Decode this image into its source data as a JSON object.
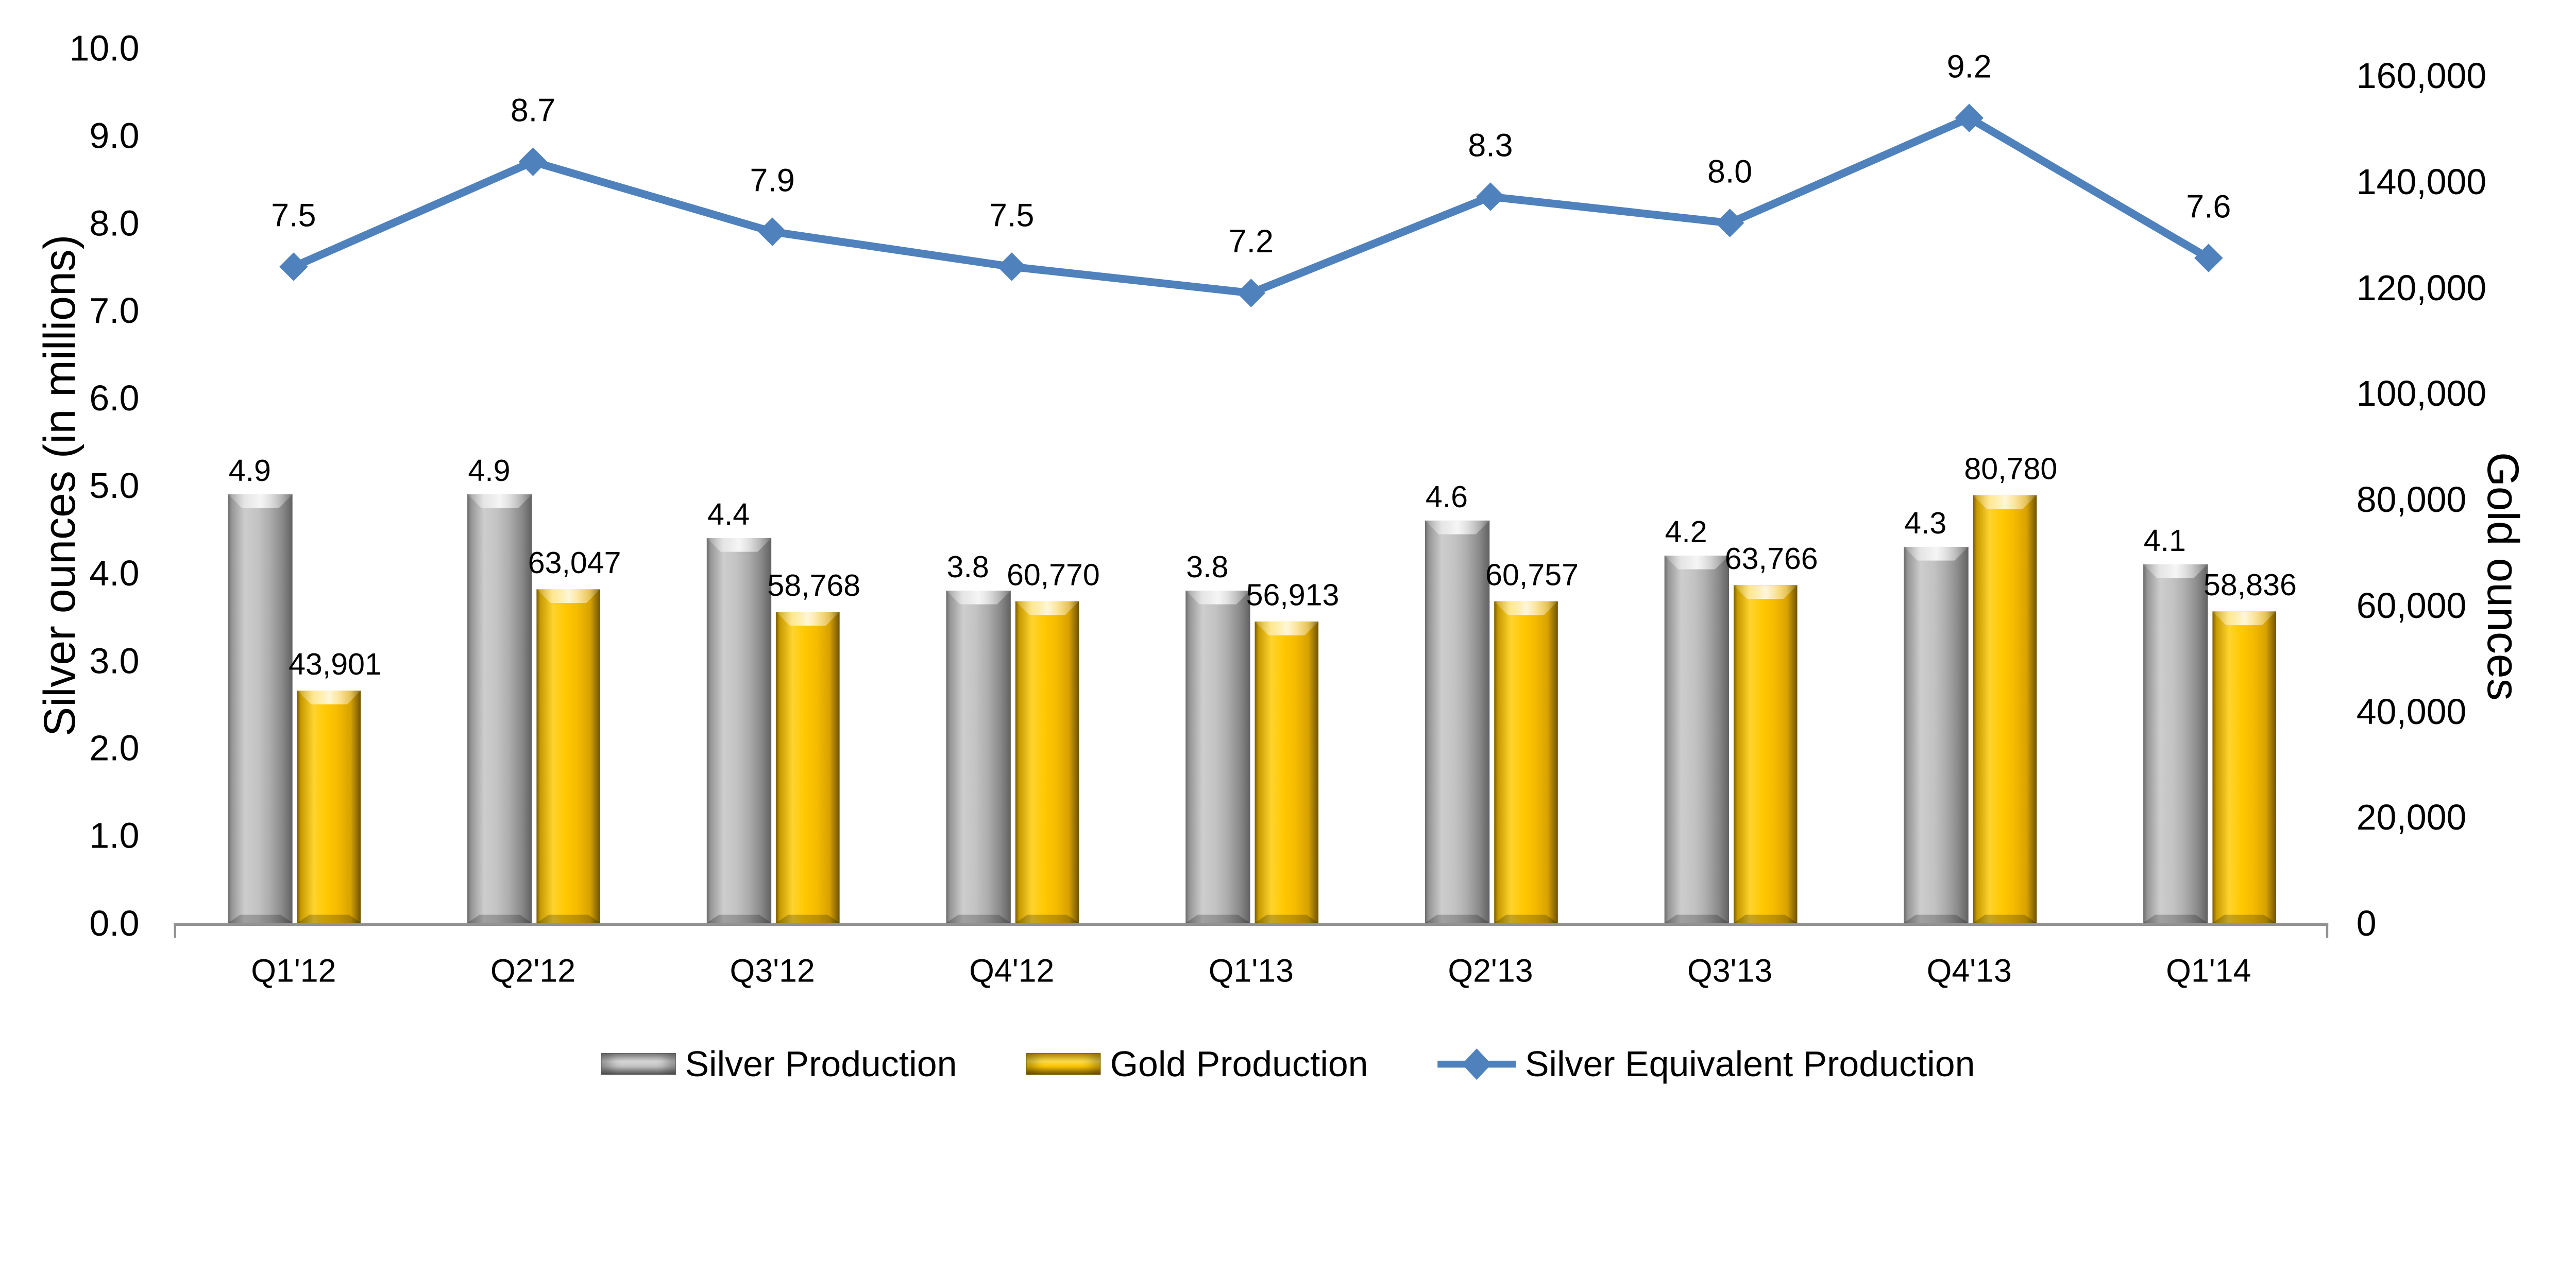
{
  "chart_data": {
    "type": "combo-bar-line",
    "title": "",
    "categories": [
      "Q1'12",
      "Q2'12",
      "Q3'12",
      "Q4'12",
      "Q1'13",
      "Q2'13",
      "Q3'13",
      "Q4'13",
      "Q1'14"
    ],
    "series": [
      {
        "name": "Silver Production",
        "type": "bar",
        "axis": "left",
        "color": "#A6A6A6",
        "values": [
          4.9,
          4.9,
          4.4,
          3.8,
          3.8,
          4.6,
          4.2,
          4.3,
          4.1
        ],
        "labels": [
          "4.9",
          "4.9",
          "4.4",
          "3.8",
          "3.8",
          "4.6",
          "4.2",
          "4.3",
          "4.1"
        ]
      },
      {
        "name": "Gold Production",
        "type": "bar",
        "axis": "right",
        "color": "#FFC000",
        "values": [
          43901,
          63047,
          58768,
          60770,
          56913,
          60757,
          63766,
          80780,
          58836
        ],
        "labels": [
          "43,901",
          "63,047",
          "58,768",
          "60,770",
          "56,913",
          "60,757",
          "63,766",
          "80,780",
          "58,836"
        ]
      },
      {
        "name": "Silver Equivalent Production",
        "type": "line",
        "axis": "left",
        "color": "#4F81BD",
        "values": [
          7.5,
          8.7,
          7.9,
          7.5,
          7.2,
          8.3,
          8.0,
          9.2,
          7.6
        ],
        "labels": [
          "7.5",
          "8.7",
          "7.9",
          "7.5",
          "7.2",
          "8.3",
          "8.0",
          "9.2",
          "7.6"
        ]
      }
    ],
    "left_axis": {
      "title": "Silver ounces (in millions)",
      "min": 0,
      "max": 10,
      "step": 1,
      "tick_labels": [
        "0.0",
        "1.0",
        "2.0",
        "3.0",
        "4.0",
        "5.0",
        "6.0",
        "7.0",
        "8.0",
        "9.0",
        "10.0"
      ]
    },
    "right_axis": {
      "title": "Gold ounces",
      "min": 0,
      "max": 160000,
      "step": 20000,
      "tick_labels": [
        "0",
        "20,000",
        "40,000",
        "60,000",
        "80,000",
        "100,000",
        "120,000",
        "140,000",
        "160,000"
      ]
    },
    "legend_position": "bottom",
    "grid": false,
    "colors": {
      "silver_bar": "#A6A6A6",
      "gold_bar": "#FFC000",
      "line": "#4F81BD",
      "axis_line": "#929292",
      "text": "#000000"
    }
  }
}
